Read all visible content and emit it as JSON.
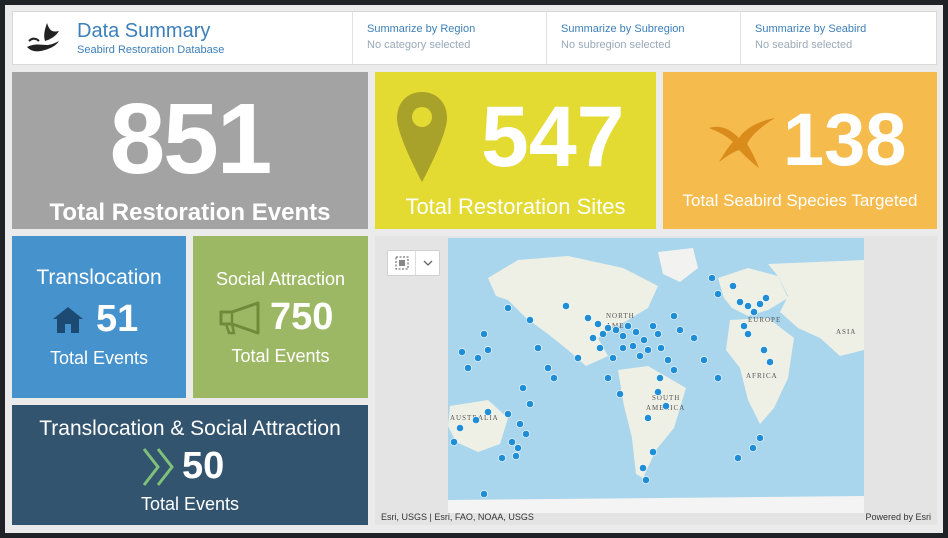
{
  "header": {
    "title": "Data Summary",
    "subtitle": "Seabird Restoration Database",
    "filters": [
      {
        "label": "Summarize by Region",
        "value": "No category selected"
      },
      {
        "label": "Summarize by Subregion",
        "value": "No subregion selected"
      },
      {
        "label": "Summarize by Seabird",
        "value": "No seabird selected"
      }
    ]
  },
  "cards": {
    "total_events": {
      "value": "851",
      "label": "Total Restoration Events"
    },
    "sites": {
      "value": "547",
      "label": "Total Restoration Sites",
      "icon": "map-pin-icon"
    },
    "species": {
      "value": "138",
      "label": "Total Seabird Species Targeted",
      "icon": "seabird-icon"
    },
    "translocation": {
      "title": "Translocation",
      "value": "51",
      "label": "Total Events",
      "icon": "house-icon"
    },
    "social": {
      "title": "Social Attraction",
      "value": "750",
      "label": "Total Events",
      "icon": "megaphone-icon"
    },
    "both": {
      "title": "Translocation & Social Attraction",
      "value": "50",
      "label": "Total Events",
      "icon": "double-chevron-icon"
    }
  },
  "map": {
    "attribution": "Esri, USGS | Esri, FAO, NOAA, USGS",
    "powered_by": "Powered by Esri",
    "labels": [
      "NORTH",
      "AMER",
      "EUROPE",
      "ASIA",
      "AFRICA",
      "SOUTH",
      "AMERICA",
      "AUSTRALIA"
    ]
  },
  "colors": {
    "gray": "#a3a3a3",
    "yellow": "#e3da32",
    "orange": "#f6bb4d",
    "blue": "#4692cd",
    "green": "#9db865",
    "navy": "#33546e",
    "dot": "#1f8ed6"
  }
}
